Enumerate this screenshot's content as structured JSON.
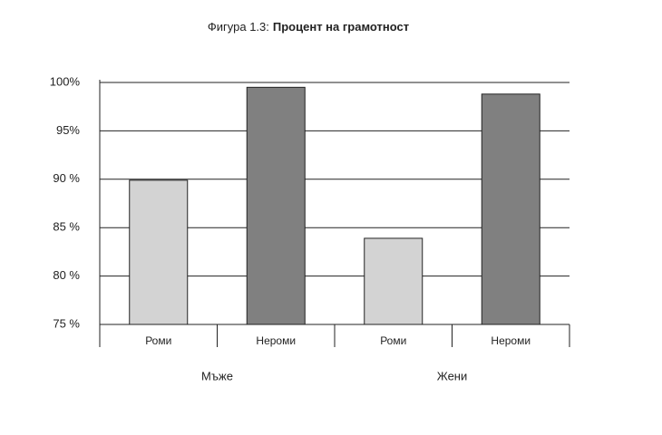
{
  "chart_data": {
    "type": "bar",
    "figure_label": "Фигура 1.3:",
    "title": "Процент на грамотност",
    "categories": [
      "Роми",
      "Нероми",
      "Роми",
      "Нероми"
    ],
    "groups": [
      "Мъже",
      "Жени"
    ],
    "values": [
      89.9,
      99.5,
      83.9,
      98.8
    ],
    "colors": [
      "#d3d3d3",
      "#808080",
      "#d3d3d3",
      "#808080"
    ],
    "ylim": [
      75,
      100
    ],
    "yticks": [
      {
        "value": 75,
        "label": "75 %"
      },
      {
        "value": 80,
        "label": "80 %"
      },
      {
        "value": 85,
        "label": "85 %"
      },
      {
        "value": 90,
        "label": "90 %"
      },
      {
        "value": 95,
        "label": "95%"
      },
      {
        "value": 100,
        "label": "100%"
      }
    ],
    "grid": true
  }
}
